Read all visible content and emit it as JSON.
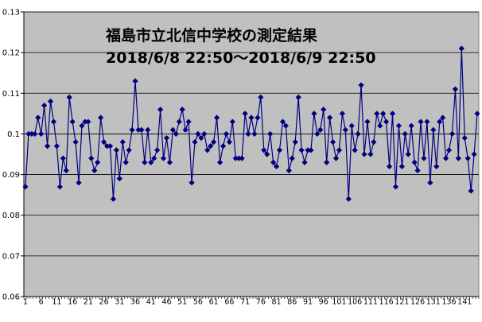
{
  "chart_data": {
    "type": "line",
    "title": "福島市立北信中学校の測定結果",
    "subtitle": "2018/6/8 22:50～2018/6/9 22:50",
    "xlabel": "",
    "ylabel": "",
    "ylim": [
      0.06,
      0.13
    ],
    "y_ticks": [
      "0.06",
      "0.07",
      "0.08",
      "0.09",
      "0.1",
      "0.11",
      "0.12",
      "0.13"
    ],
    "x_tick_labels": [
      "1",
      "6",
      "11",
      "16",
      "21",
      "26",
      "31",
      "36",
      "41",
      "46",
      "51",
      "56",
      "61",
      "66",
      "71",
      "76",
      "81",
      "86",
      "91",
      "96",
      "101",
      "106",
      "111",
      "116",
      "121",
      "126",
      "131",
      "136",
      "141"
    ],
    "grid": "horizontal",
    "colors": {
      "plot_bg": "#C0C0C0",
      "line": "#000080",
      "marker": "#000080",
      "grid": "#000000"
    },
    "series": [
      {
        "values": [
          0.087,
          0.1,
          0.1,
          0.1,
          0.104,
          0.1,
          0.107,
          0.097,
          0.108,
          0.103,
          0.097,
          0.087,
          0.094,
          0.091,
          0.109,
          0.103,
          0.098,
          0.088,
          0.102,
          0.103,
          0.103,
          0.094,
          0.091,
          0.093,
          0.104,
          0.098,
          0.097,
          0.097,
          0.084,
          0.096,
          0.089,
          0.098,
          0.093,
          0.096,
          0.101,
          0.113,
          0.101,
          0.101,
          0.093,
          0.101,
          0.093,
          0.094,
          0.096,
          0.106,
          0.094,
          0.099,
          0.093,
          0.101,
          0.1,
          0.103,
          0.106,
          0.101,
          0.103,
          0.088,
          0.098,
          0.1,
          0.099,
          0.1,
          0.096,
          0.097,
          0.098,
          0.104,
          0.093,
          0.097,
          0.1,
          0.098,
          0.103,
          0.094,
          0.094,
          0.094,
          0.105,
          0.1,
          0.104,
          0.1,
          0.104,
          0.109,
          0.096,
          0.095,
          0.1,
          0.093,
          0.092,
          0.096,
          0.103,
          0.102,
          0.091,
          0.094,
          0.098,
          0.109,
          0.096,
          0.093,
          0.096,
          0.096,
          0.105,
          0.1,
          0.101,
          0.106,
          0.093,
          0.104,
          0.098,
          0.094,
          0.096,
          0.105,
          0.101,
          0.084,
          0.102,
          0.096,
          0.1,
          0.112,
          0.095,
          0.103,
          0.095,
          0.098,
          0.105,
          0.102,
          0.105,
          0.103,
          0.092,
          0.105,
          0.087,
          0.102,
          0.092,
          0.1,
          0.095,
          0.102,
          0.093,
          0.091,
          0.103,
          0.094,
          0.103,
          0.088,
          0.101,
          0.092,
          0.103,
          0.104,
          0.094,
          0.096,
          0.1,
          0.111,
          0.094,
          0.121,
          0.099,
          0.094,
          0.086,
          0.095,
          0.105
        ]
      }
    ]
  }
}
